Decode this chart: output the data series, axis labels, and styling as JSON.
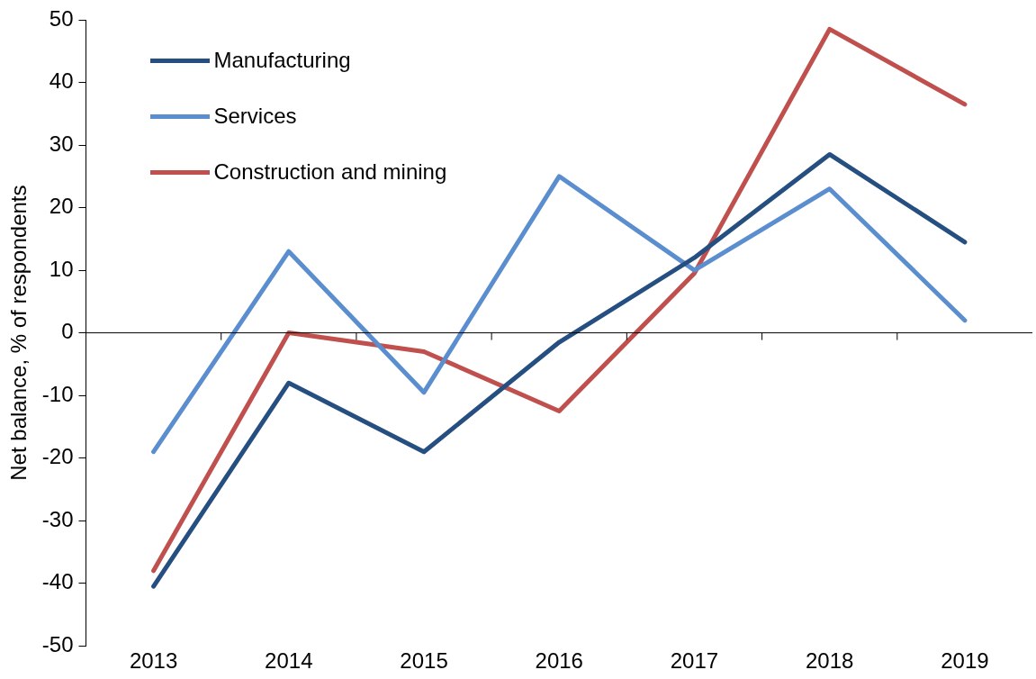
{
  "chart_data": {
    "type": "line",
    "ylabel": "Net balance, % of respondents",
    "categories": [
      "2013",
      "2014",
      "2015",
      "2016",
      "2017",
      "2018",
      "2019"
    ],
    "series": [
      {
        "name": "Manufacturing",
        "color": "#254f80",
        "values": [
          -40.5,
          -8,
          -19,
          -1.5,
          12,
          28.5,
          14.5
        ]
      },
      {
        "name": "Services",
        "color": "#5b8ecf",
        "values": [
          -19,
          13,
          -9.5,
          25,
          10,
          23,
          2
        ]
      },
      {
        "name": "Construction and mining",
        "color": "#c0504d",
        "values": [
          -38,
          0,
          -3,
          -12.5,
          9.5,
          48.5,
          36.5
        ]
      }
    ],
    "ylim": [
      -50,
      50
    ],
    "yticks": [
      -50,
      -40,
      -30,
      -20,
      -10,
      0,
      10,
      20,
      30,
      40,
      50
    ],
    "legend": "top left",
    "marker": "none",
    "line_style": "solid"
  }
}
